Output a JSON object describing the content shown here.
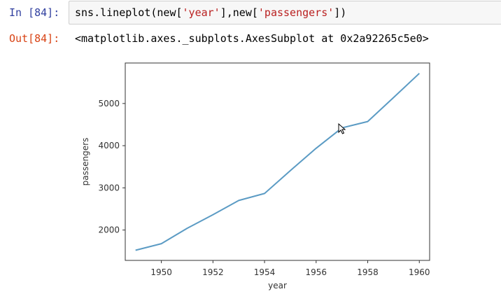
{
  "input_cell": {
    "prompt": "In [84]:",
    "code_prefix": "sns.lineplot(new[",
    "code_arg1": "'year'",
    "code_mid": "],new[",
    "code_arg2": "'passengers'",
    "code_suffix": "])"
  },
  "output_cell": {
    "prompt": "Out[84]:",
    "text": "<matplotlib.axes._subplots.AxesSubplot at 0x2a92265c5e0>"
  },
  "colors": {
    "line": "#5b9bc4",
    "in_prompt": "#303f9f",
    "out_prompt": "#d84315",
    "string": "#ba2121"
  },
  "chart_data": {
    "type": "line",
    "xlabel": "year",
    "ylabel": "passengers",
    "xlim": [
      1948.6,
      1960.4
    ],
    "ylim": [
      1280,
      5960
    ],
    "xticks": [
      1950,
      1952,
      1954,
      1956,
      1958,
      1960
    ],
    "yticks": [
      2000,
      3000,
      4000,
      5000
    ],
    "grid": false,
    "series": [
      {
        "x": [
          1949,
          1950,
          1951,
          1952,
          1953,
          1954,
          1955,
          1956,
          1957,
          1958,
          1959,
          1960
        ],
        "y": [
          1520,
          1676,
          2042,
          2364,
          2700,
          2867,
          3408,
          3939,
          4421,
          4572,
          5140,
          5714
        ]
      }
    ]
  }
}
